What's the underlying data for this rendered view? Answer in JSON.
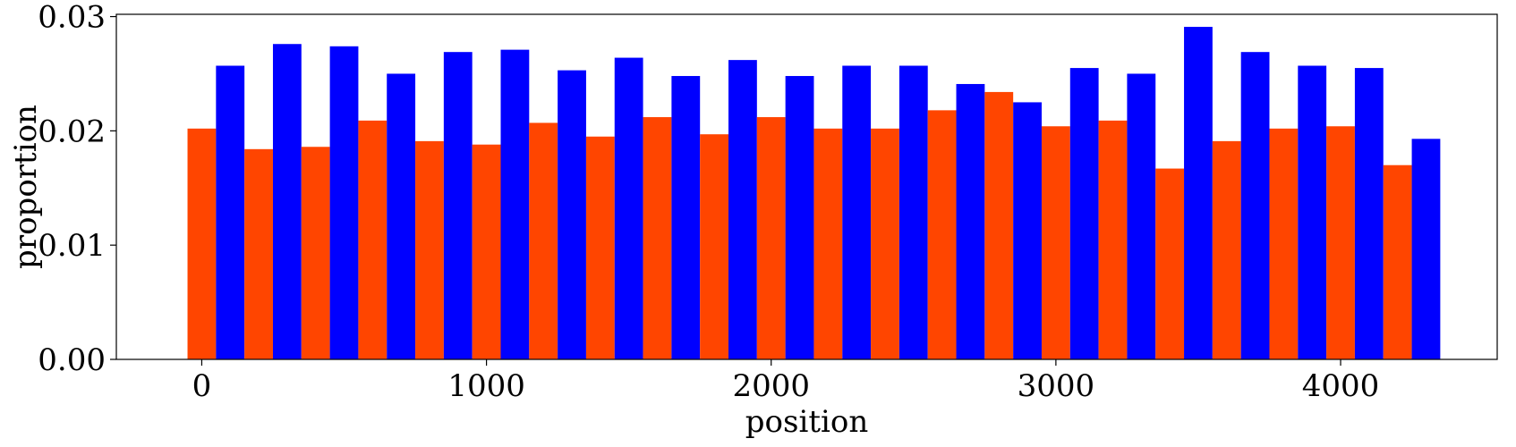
{
  "chart_data": {
    "type": "bar",
    "xlabel": "position",
    "ylabel": "proportion",
    "xlim": [
      -300,
      4550
    ],
    "ylim": [
      0,
      0.0302
    ],
    "x_ticks": [
      0,
      1000,
      2000,
      3000,
      4000
    ],
    "y_ticks": [
      0.0,
      0.01,
      0.02,
      0.03
    ],
    "y_tick_labels": [
      "0.00",
      "0.01",
      "0.02",
      "0.03"
    ],
    "bin_width": 200,
    "bin_starts": [
      -50,
      150,
      350,
      550,
      750,
      950,
      1150,
      1350,
      1550,
      1750,
      1950,
      2150,
      2350,
      2550,
      2750,
      2950,
      3150,
      3350,
      3550,
      3750,
      3950,
      4150
    ],
    "series": [
      {
        "color": "#ff4500",
        "values": [
          0.0202,
          0.0184,
          0.0186,
          0.0209,
          0.0191,
          0.0188,
          0.0207,
          0.0195,
          0.0212,
          0.0197,
          0.0212,
          0.0202,
          0.0202,
          0.0218,
          0.0234,
          0.0204,
          0.0209,
          0.0167,
          0.0191,
          0.0202,
          0.0204,
          0.017
        ]
      },
      {
        "color": "#0000ff",
        "values": [
          0.0257,
          0.0276,
          0.0274,
          0.025,
          0.0269,
          0.0271,
          0.0253,
          0.0264,
          0.0248,
          0.0262,
          0.0248,
          0.0257,
          0.0257,
          0.0241,
          0.0225,
          0.0255,
          0.025,
          0.0291,
          0.0269,
          0.0257,
          0.0255,
          0.0193
        ]
      }
    ],
    "grid": false
  }
}
